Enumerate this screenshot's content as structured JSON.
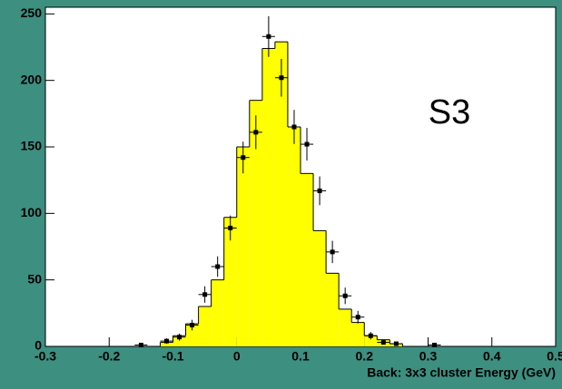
{
  "chart_data": [
    {
      "type": "histogram",
      "bins": [
        -0.12,
        -0.1,
        -0.08,
        -0.06,
        -0.04,
        -0.02,
        0,
        0.02,
        0.04,
        0.06,
        0.08,
        0.1,
        0.12,
        0.14,
        0.16,
        0.18,
        0.2,
        0.22,
        0.24,
        0.26
      ],
      "values": [
        3,
        8,
        17,
        30,
        50,
        97,
        150,
        185,
        224,
        229,
        165,
        130,
        87,
        55,
        28,
        18,
        8,
        5,
        2
      ],
      "color": "#ffff00",
      "xlim": [
        -0.3,
        0.5
      ],
      "ylim": [
        0,
        255
      ],
      "xticks": [
        -0.3,
        -0.2,
        -0.1,
        0,
        0.1,
        0.2,
        0.3,
        0.4,
        0.5
      ],
      "yticks": [
        0,
        50,
        100,
        150,
        200,
        250
      ],
      "xlabel": "Back: 3x3 cluster Energy (GeV)",
      "annotation": "S3"
    },
    {
      "type": "errorbar",
      "x": [
        -0.15,
        -0.11,
        -0.09,
        -0.07,
        -0.05,
        -0.03,
        -0.01,
        0.01,
        0.03,
        0.05,
        0.07,
        0.09,
        0.11,
        0.13,
        0.15,
        0.17,
        0.19,
        0.21,
        0.23,
        0.25,
        0.31
      ],
      "values": [
        1,
        4,
        7,
        16,
        39,
        60,
        89,
        142,
        161,
        233,
        202,
        165,
        152,
        117,
        71,
        38,
        22,
        8,
        3,
        2,
        1
      ],
      "errors": [
        1,
        2,
        2.6,
        4,
        6.2,
        7.7,
        9.4,
        11.9,
        12.7,
        15.3,
        14.2,
        12.8,
        12.3,
        10.8,
        8.4,
        6.2,
        4.7,
        2.8,
        1.7,
        1.4,
        1
      ],
      "xerr": 0.01,
      "color": "#000000"
    }
  ]
}
